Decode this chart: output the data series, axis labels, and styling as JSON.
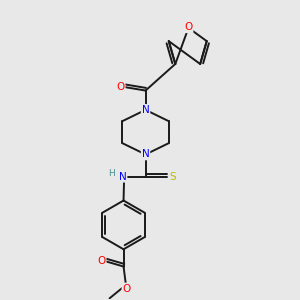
{
  "bg_color": "#e8e8e8",
  "bond_color": "#1a1a1a",
  "atom_colors": {
    "O": "#ff0000",
    "N": "#0000ff",
    "S": "#bbbb00",
    "C": "#1a1a1a",
    "H": "#4a9090"
  },
  "figsize": [
    3.0,
    3.0
  ],
  "dpi": 100
}
